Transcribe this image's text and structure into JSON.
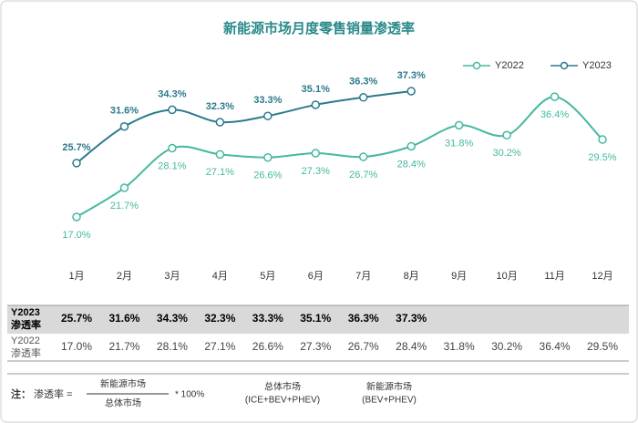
{
  "chart_data": {
    "type": "line",
    "title": "新能源市场月度零售销量渗透率",
    "categories": [
      "1月",
      "2月",
      "3月",
      "4月",
      "5月",
      "6月",
      "7月",
      "8月",
      "9月",
      "10月",
      "11月",
      "12月"
    ],
    "series": [
      {
        "name": "Y2022",
        "color": "#45b8a0",
        "values": [
          17.0,
          21.7,
          28.1,
          27.1,
          26.6,
          27.3,
          26.7,
          28.4,
          31.8,
          30.2,
          36.4,
          29.5
        ],
        "value_labels": [
          "17.0%",
          "21.7%",
          "28.1%",
          "27.1%",
          "26.6%",
          "27.3%",
          "26.7%",
          "28.4%",
          "31.8%",
          "30.2%",
          "36.4%",
          "29.5%"
        ]
      },
      {
        "name": "Y2023",
        "color": "#2b7a8c",
        "values": [
          25.7,
          31.6,
          34.3,
          32.3,
          33.3,
          35.1,
          36.3,
          37.3,
          null,
          null,
          null,
          null
        ],
        "value_labels": [
          "25.7%",
          "31.6%",
          "34.3%",
          "32.3%",
          "33.3%",
          "35.1%",
          "36.3%",
          "37.3%",
          null,
          null,
          null,
          null
        ]
      }
    ],
    "legend": "top-right"
  },
  "table": {
    "row_label": "渗透率"
  },
  "note": {
    "prefix": "注：",
    "lhs": "渗透率 =",
    "numerator": "新能源市场",
    "denominator": "总体市场",
    "multiplier": "* 100%",
    "definitions": [
      {
        "name": "总体市场",
        "formula": "(ICE+BEV+PHEV)"
      },
      {
        "name": "新能源市场",
        "formula": "(BEV+PHEV)"
      }
    ]
  }
}
